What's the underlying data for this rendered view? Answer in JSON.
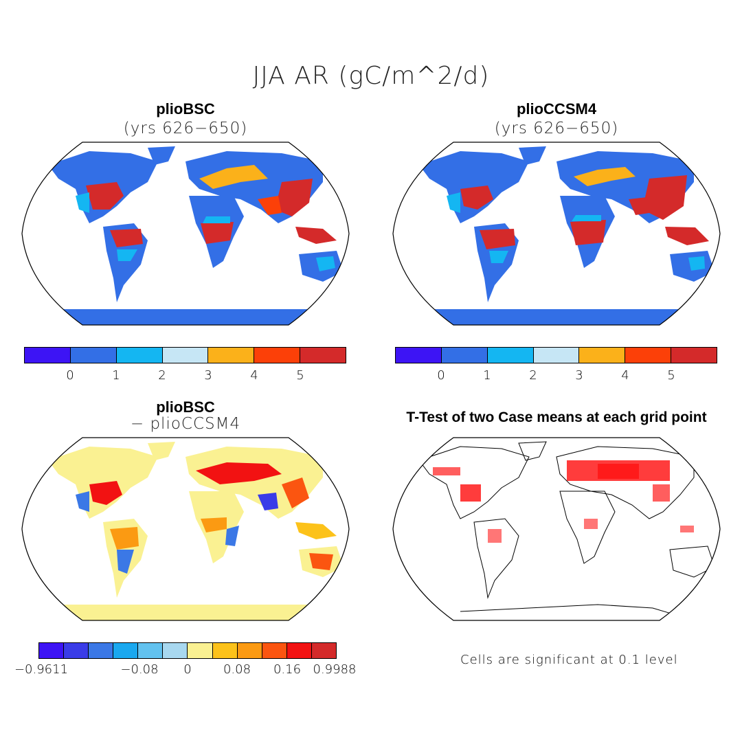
{
  "figure": {
    "main_title": "JJA AR (gC/m^2/d)"
  },
  "panels": [
    {
      "id": "p1",
      "title": "plioBSC",
      "subtitle": "(yrs 626−650)"
    },
    {
      "id": "p2",
      "title": "plioCCSM4",
      "subtitle": "(yrs 626−650)"
    },
    {
      "id": "p3",
      "title": "plioBSC",
      "subtitle": "− plioCCSM4"
    },
    {
      "id": "p4",
      "title": "T-Test of two Case means at each grid point",
      "subtitle": ""
    }
  ],
  "colorbars": {
    "mean": {
      "colors": [
        "#3d14f5",
        "#336fe6",
        "#14b6f2",
        "#c6e6f5",
        "#fbb11a",
        "#fc4008",
        "#d42a2a"
      ],
      "labels": [
        "0",
        "1",
        "2",
        "3",
        "4",
        "5"
      ]
    },
    "diff": {
      "colors": [
        "#3d14f5",
        "#3a3ce8",
        "#3b78e6",
        "#1aa8ef",
        "#62c2ef",
        "#a8d8f0",
        "#faf192",
        "#fcc21a",
        "#fb9a12",
        "#fb5510",
        "#f21212",
        "#d42a2a"
      ],
      "labels": [
        "−0.9611",
        "−0.08",
        "0",
        "0.08",
        "0.16",
        "0.9988"
      ]
    }
  },
  "significance_note": "Cells are significant at 0.1 level",
  "chart_data": [
    {
      "type": "heatmap",
      "title": "plioBSC (yrs 626−650)",
      "variable": "JJA AR",
      "units": "gC/m^2/d",
      "projection": "Robinson (global)",
      "levels": [
        0,
        1,
        2,
        3,
        4,
        5
      ],
      "regions_high": [
        "eastern North America",
        "Amazon",
        "central Africa",
        "South/Southeast Asia",
        "Maritime Continent"
      ]
    },
    {
      "type": "heatmap",
      "title": "plioCCSM4 (yrs 626−650)",
      "variable": "JJA AR",
      "units": "gC/m^2/d",
      "projection": "Robinson (global)",
      "levels": [
        0,
        1,
        2,
        3,
        4,
        5
      ],
      "regions_high": [
        "eastern North America",
        "Amazon",
        "central Africa",
        "South/Southeast Asia",
        "Maritime Continent"
      ]
    },
    {
      "type": "heatmap",
      "title": "plioBSC − plioCCSM4",
      "units": "gC/m^2/d",
      "projection": "Robinson (global)",
      "levels": [
        -0.9611,
        -0.08,
        0,
        0.08,
        0.16,
        0.9988
      ]
    },
    {
      "type": "heatmap",
      "title": "T-Test of two Case means at each grid point",
      "significance_level": 0.1,
      "note": "Cells are significant at 0.1 level"
    }
  ]
}
